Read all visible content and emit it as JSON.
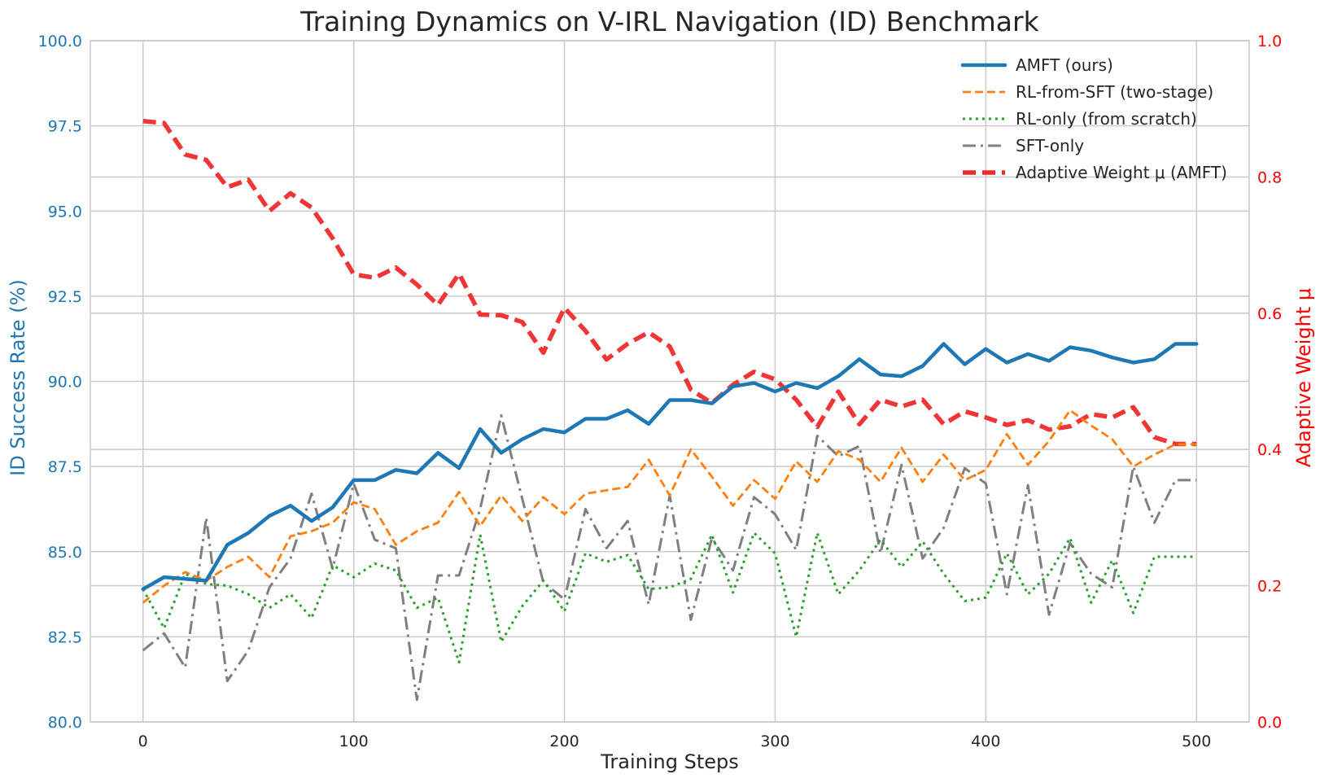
{
  "chart_data": {
    "type": "line",
    "title": "Training Dynamics on V-IRL Navigation (ID) Benchmark",
    "xlabel": "Training Steps",
    "ylabel": "ID Success Rate (%)",
    "y2label": "Adaptive Weight μ",
    "xlim": [
      -25,
      525
    ],
    "ylim": [
      80.0,
      100.0
    ],
    "y2lim": [
      0.0,
      1.0
    ],
    "x_ticks": [
      "0",
      "100",
      "200",
      "300",
      "400",
      "500"
    ],
    "y_ticks": [
      "80.0",
      "82.5",
      "85.0",
      "87.5",
      "90.0",
      "92.5",
      "95.0",
      "97.5",
      "100.0"
    ],
    "y2_ticks": [
      "0.0",
      "0.2",
      "0.4",
      "0.6",
      "0.8",
      "1.0"
    ],
    "grid": true,
    "legend_position": "top-right",
    "colors": {
      "left_axis": "#1f77b4",
      "right_axis": "#ff0000",
      "grid": "#cccccc",
      "text": "#262626"
    },
    "x": [
      0,
      10,
      20,
      30,
      40,
      50,
      60,
      70,
      80,
      90,
      100,
      110,
      120,
      130,
      140,
      150,
      160,
      170,
      180,
      190,
      200,
      210,
      220,
      230,
      240,
      250,
      260,
      270,
      280,
      290,
      300,
      310,
      320,
      330,
      340,
      350,
      360,
      370,
      380,
      390,
      400,
      410,
      420,
      430,
      440,
      450,
      460,
      470,
      480,
      490,
      500
    ],
    "series": [
      {
        "name": "AMFT (ours)",
        "axis": "left",
        "color": "#1f77b4",
        "style": "solid",
        "values": [
          83.9,
          84.25,
          84.2,
          84.15,
          85.2,
          85.55,
          86.05,
          86.35,
          85.9,
          86.3,
          87.1,
          87.1,
          87.4,
          87.3,
          87.9,
          87.45,
          88.6,
          87.9,
          88.3,
          88.6,
          88.5,
          88.9,
          88.9,
          89.15,
          88.75,
          89.45,
          89.45,
          89.35,
          89.85,
          89.95,
          89.7,
          89.95,
          89.8,
          90.15,
          90.65,
          90.2,
          90.15,
          90.45,
          91.1,
          90.5,
          90.95,
          90.55,
          90.8,
          90.6,
          91.0,
          90.9,
          90.7,
          90.55,
          90.65,
          91.1,
          91.1
        ]
      },
      {
        "name": "RL-from-SFT (two-stage)",
        "axis": "left",
        "color": "#ff7f0e",
        "style": "dashed",
        "values": [
          83.5,
          84.0,
          84.4,
          84.15,
          84.55,
          84.85,
          84.25,
          85.45,
          85.6,
          85.85,
          86.45,
          86.25,
          85.2,
          85.6,
          85.85,
          86.75,
          85.75,
          86.65,
          85.9,
          86.6,
          86.1,
          86.7,
          86.8,
          86.9,
          87.7,
          86.65,
          88.0,
          87.2,
          86.35,
          87.1,
          86.55,
          87.65,
          87.05,
          87.95,
          87.7,
          87.05,
          88.05,
          87.05,
          87.85,
          87.1,
          87.4,
          88.45,
          87.55,
          88.25,
          89.15,
          88.7,
          88.3,
          87.5,
          87.85,
          88.15,
          88.15
        ]
      },
      {
        "name": "RL-only (from scratch)",
        "axis": "left",
        "color": "#2ca02c",
        "style": "dotted",
        "values": [
          83.9,
          82.75,
          84.35,
          84.05,
          84.0,
          83.75,
          83.35,
          83.75,
          83.05,
          84.6,
          84.25,
          84.65,
          84.45,
          83.35,
          83.65,
          81.75,
          85.5,
          82.35,
          83.4,
          84.15,
          83.25,
          84.95,
          84.7,
          84.9,
          83.9,
          83.95,
          84.2,
          85.5,
          83.8,
          85.55,
          84.95,
          82.5,
          85.55,
          83.75,
          84.45,
          85.35,
          84.55,
          85.3,
          84.35,
          83.55,
          83.65,
          84.95,
          83.75,
          84.35,
          85.4,
          83.5,
          84.75,
          83.2,
          84.85,
          84.85,
          84.85
        ]
      },
      {
        "name": "SFT-only",
        "axis": "left",
        "color": "#7f7f7f",
        "style": "dashdot",
        "values": [
          82.1,
          82.6,
          81.6,
          86.0,
          81.2,
          82.1,
          83.95,
          84.8,
          86.7,
          84.5,
          87.0,
          85.35,
          85.1,
          80.65,
          84.3,
          84.3,
          86.25,
          89.0,
          86.55,
          84.1,
          83.6,
          86.25,
          85.1,
          85.9,
          83.45,
          86.65,
          83.0,
          85.4,
          84.45,
          86.6,
          86.1,
          85.05,
          88.4,
          87.8,
          88.1,
          84.95,
          87.55,
          84.8,
          85.7,
          87.45,
          87.0,
          83.75,
          86.95,
          83.15,
          85.25,
          84.35,
          83.95,
          87.5,
          85.85,
          87.1,
          87.1
        ]
      },
      {
        "name": "Adaptive Weight μ (AMFT)",
        "axis": "right",
        "color": "#ee2a2a",
        "style": "bold-dashed",
        "values": [
          0.882,
          0.879,
          0.833,
          0.825,
          0.785,
          0.796,
          0.75,
          0.776,
          0.755,
          0.71,
          0.657,
          0.652,
          0.667,
          0.642,
          0.612,
          0.658,
          0.598,
          0.597,
          0.587,
          0.542,
          0.608,
          0.574,
          0.532,
          0.555,
          0.572,
          0.551,
          0.488,
          0.468,
          0.495,
          0.514,
          0.503,
          0.473,
          0.433,
          0.485,
          0.437,
          0.473,
          0.463,
          0.473,
          0.437,
          0.456,
          0.447,
          0.436,
          0.443,
          0.429,
          0.434,
          0.452,
          0.447,
          0.462,
          0.418,
          0.408,
          0.408
        ]
      }
    ]
  }
}
